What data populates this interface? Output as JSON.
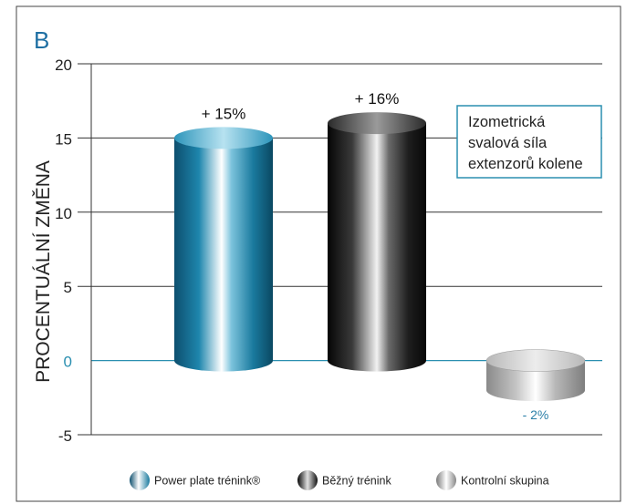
{
  "panel_label": "B",
  "chart_data": {
    "type": "bar",
    "style": "3d-cylinder",
    "title": "",
    "xlabel": "",
    "ylabel": "PROCENTUÁLNÍ ZMĚNA",
    "ylim": [
      -5,
      20
    ],
    "yticks": [
      20,
      15,
      10,
      5,
      0,
      -5
    ],
    "grid": true,
    "categories": [
      "Power plate trénink®",
      "Běžný trénink",
      "Kontrolní skupina"
    ],
    "values": [
      15,
      16,
      -2
    ],
    "value_labels": [
      "+ 15%",
      "+ 16%",
      "- 2%"
    ],
    "annotation": [
      "Izometrická",
      "svalová síla",
      "extenzorů kolene"
    ],
    "legend": {
      "placement": "bottom",
      "items": [
        "Power plate trénink®",
        "Běžný trénink",
        "Kontrolní skupina"
      ]
    },
    "colors": {
      "series": [
        "#1a7a9e",
        "#2a2a2a",
        "#a8a8a8"
      ],
      "zero_line": "#2a8fb0",
      "neg_label": "#2a7fa8",
      "annotation_border": "#2a8fb0",
      "frame": "#444444"
    }
  }
}
